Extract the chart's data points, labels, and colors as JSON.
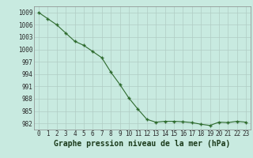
{
  "x": [
    0,
    1,
    2,
    3,
    4,
    5,
    6,
    7,
    8,
    9,
    10,
    11,
    12,
    13,
    14,
    15,
    16,
    17,
    18,
    19,
    20,
    21,
    22,
    23
  ],
  "y": [
    1009,
    1007.5,
    1006,
    1004,
    1002,
    1001,
    999.5,
    998,
    994.5,
    991.5,
    988.2,
    985.5,
    983,
    982.3,
    982.5,
    982.5,
    982.4,
    982.2,
    981.8,
    981.5,
    982.3,
    982.2,
    982.5,
    982.3
  ],
  "line_color": "#2d6a2d",
  "marker_color": "#2d6a2d",
  "bg_color": "#c8eae0",
  "grid_color": "#b0ccc4",
  "ylabel_ticks": [
    982,
    985,
    988,
    991,
    994,
    997,
    1000,
    1003,
    1006,
    1009
  ],
  "xlabel": "Graphe pression niveau de la mer (hPa)",
  "ylim": [
    980.5,
    1010.5
  ],
  "xlim": [
    -0.5,
    23.5
  ],
  "tick_fontsize": 5.5,
  "xlabel_fontsize": 7.0
}
